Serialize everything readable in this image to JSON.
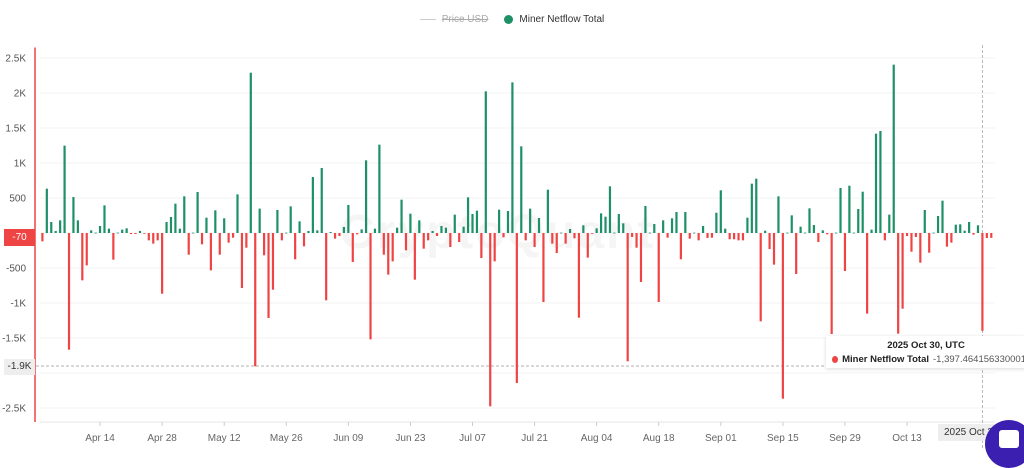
{
  "legend": [
    {
      "label": "Price USD",
      "enabled": false
    },
    {
      "label": "Miner Netflow Total",
      "enabled": true
    }
  ],
  "colors": {
    "positive": "#1e9068",
    "negative": "#ef4444",
    "axis": "#ef4444",
    "chat": "#3a1fb0",
    "price_legend": "#cccccc"
  },
  "watermark": "CryptoQuant",
  "last_value_badge": "-70",
  "crosshair_y_badge": "-1.9K",
  "crosshair_x_badge": "2025 Oct 30",
  "tooltip": {
    "title": "2025 Oct 30, UTC",
    "series": "Miner Netflow Total",
    "value": "-1,397.464156330001"
  },
  "chart_data": {
    "type": "bar",
    "title": "",
    "series_name": "Miner Netflow Total",
    "x_start": "2025-04-01",
    "x_end": "2025-11-01",
    "x_interval": "1 day",
    "ylim": [
      -2700,
      2650
    ],
    "y_ticks": [
      2500,
      2000,
      1500,
      1000,
      500,
      0,
      -500,
      -1000,
      -1500,
      -2000,
      -2500
    ],
    "y_tick_labels": [
      "2.5K",
      "2K",
      "1.5K",
      "1K",
      "500",
      "",
      "-500",
      "-1K",
      "-1.5K",
      "",
      "-2.5K"
    ],
    "x_tick_labels": [
      {
        "label": "Apr 14",
        "index": 13
      },
      {
        "label": "Apr 28",
        "index": 27
      },
      {
        "label": "May 12",
        "index": 41
      },
      {
        "label": "May 26",
        "index": 55
      },
      {
        "label": "Jun 09",
        "index": 69
      },
      {
        "label": "Jun 23",
        "index": 83
      },
      {
        "label": "Jul 07",
        "index": 97
      },
      {
        "label": "Jul 21",
        "index": 111
      },
      {
        "label": "Aug 04",
        "index": 125
      },
      {
        "label": "Aug 18",
        "index": 139
      },
      {
        "label": "Sep 01",
        "index": 153
      },
      {
        "label": "Sep 15",
        "index": 167
      },
      {
        "label": "Sep 29",
        "index": 181
      },
      {
        "label": "Oct 13",
        "index": 195
      }
    ],
    "crosshair_index": 212,
    "crosshair_value": -1900,
    "values": [
      -120,
      633,
      157,
      29,
      181,
      1248,
      -1667,
      514,
      181,
      -676,
      -462,
      38,
      5,
      100,
      395,
      62,
      -381,
      5,
      48,
      67,
      -15,
      -15,
      30,
      -10,
      -105,
      -152,
      -105,
      -867,
      157,
      229,
      419,
      62,
      524,
      -310,
      5,
      586,
      -162,
      219,
      -533,
      324,
      -310,
      210,
      -138,
      -67,
      552,
      -786,
      -210,
      2290,
      -1905,
      348,
      -319,
      -1214,
      -810,
      329,
      -105,
      5,
      381,
      -376,
      167,
      -190,
      29,
      800,
      38,
      929,
      -962,
      14,
      -81,
      -43,
      86,
      400,
      -414,
      -19,
      52,
      1038,
      -1519,
      62,
      1262,
      -310,
      -595,
      -405,
      76,
      476,
      -248,
      276,
      -667,
      181,
      -224,
      -105,
      29,
      -43,
      100,
      76,
      -200,
      262,
      -129,
      90,
      510,
      271,
      319,
      -357,
      2024,
      -2476,
      -405,
      333,
      -62,
      314,
      2152,
      -2143,
      1238,
      -105,
      348,
      -200,
      214,
      -986,
      619,
      -152,
      -286,
      5,
      -152,
      57,
      -76,
      -1210,
      110,
      -352,
      -10,
      67,
      281,
      233,
      667,
      5,
      271,
      138,
      -1833,
      -57,
      -210,
      -700,
      386,
      5,
      129,
      -986,
      181,
      -67,
      210,
      300,
      -376,
      300,
      -81,
      5,
      -105,
      100,
      -71,
      -67,
      290,
      610,
      62,
      -90,
      -90,
      -105,
      -105,
      219,
      705,
      776,
      -1262,
      33,
      -229,
      -452,
      524,
      -2367,
      5,
      252,
      -586,
      90,
      5,
      352,
      114,
      -129,
      38,
      -19,
      -1443,
      5,
      643,
      -543,
      676,
      5,
      343,
      590,
      -1152,
      48,
      1419,
      1457,
      -105,
      262,
      2405,
      -1438,
      -1081,
      -43,
      -267,
      -57,
      -424,
      329,
      -281,
      5,
      243,
      462,
      -195,
      -138,
      119,
      124,
      33,
      157,
      -24,
      110,
      -1397,
      -72,
      -70
    ]
  }
}
